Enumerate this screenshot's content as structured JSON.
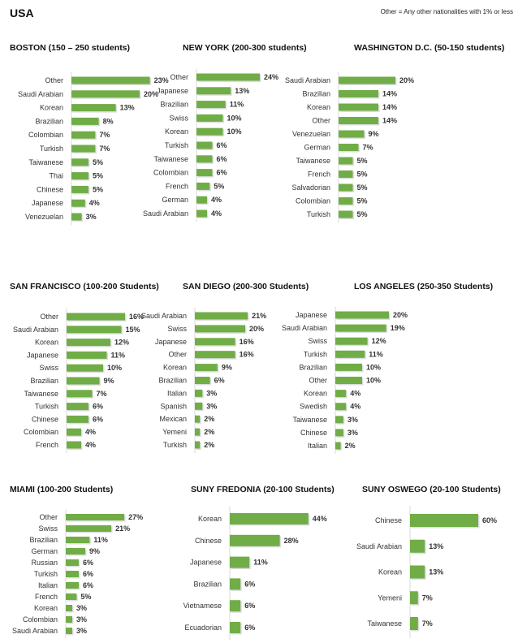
{
  "page_title": "USA",
  "note": "Other = Any other nationalities with 1% or less",
  "bar_color": "#70ad47",
  "chart_data": [
    {
      "type": "bar",
      "title": "BOSTON (150 – 250 students)",
      "categories": [
        "Other",
        "Saudi Arabian",
        "Korean",
        "Brazilian",
        "Colombian",
        "Turkish",
        "Taiwanese",
        "Thai",
        "Chinese",
        "Japanese",
        "Venezuelan"
      ],
      "values": [
        23,
        20,
        13,
        8,
        7,
        7,
        5,
        5,
        5,
        4,
        3
      ],
      "unit": "%"
    },
    {
      "type": "bar",
      "title": "NEW YORK (200-300 students)",
      "categories": [
        "Other",
        "Japanese",
        "Brazilian",
        "Swiss",
        "Korean",
        "Turkish",
        "Taiwanese",
        "Colombian",
        "French",
        "German",
        "Saudi Arabian"
      ],
      "values": [
        24,
        13,
        11,
        10,
        10,
        6,
        6,
        6,
        5,
        4,
        4
      ],
      "unit": "%"
    },
    {
      "type": "bar",
      "title": "WASHINGTON D.C. (50-150 students)",
      "categories": [
        "Saudi Arabian",
        "Brazilian",
        "Korean",
        "Other",
        "Venezuelan",
        "German",
        "Taiwanese",
        "French",
        "Salvadorian",
        "Colombian",
        "Turkish"
      ],
      "values": [
        20,
        14,
        14,
        14,
        9,
        7,
        5,
        5,
        5,
        5,
        5
      ],
      "unit": "%"
    },
    {
      "type": "bar",
      "title": "SAN FRANCISCO (100-200 Students)",
      "categories": [
        "Other",
        "Saudi Arabian",
        "Korean",
        "Japanese",
        "Swiss",
        "Brazilian",
        "Taiwanese",
        "Turkish",
        "Chinese",
        "Colombian",
        "French"
      ],
      "values": [
        16,
        15,
        12,
        11,
        10,
        9,
        7,
        6,
        6,
        4,
        4
      ],
      "unit": "%"
    },
    {
      "type": "bar",
      "title": "SAN DIEGO (200-300 Students)",
      "categories": [
        "Saudi Arabian",
        "Swiss",
        "Japanese",
        "Other",
        "Korean",
        "Brazilian",
        "Italian",
        "Spanish",
        "Mexican",
        "Yemeni",
        "Turkish"
      ],
      "values": [
        21,
        20,
        16,
        16,
        9,
        6,
        3,
        3,
        2,
        2,
        2
      ],
      "unit": "%"
    },
    {
      "type": "bar",
      "title": "LOS ANGELES (250-350 Students)",
      "categories": [
        "Japanese",
        "Saudi Arabian",
        "Swiss",
        "Turkish",
        "Brazilian",
        "Other",
        "Korean",
        "Swedish",
        "Taiwanese",
        "Chinese",
        "Italian"
      ],
      "values": [
        20,
        19,
        12,
        11,
        10,
        10,
        4,
        4,
        3,
        3,
        2
      ],
      "unit": "%"
    },
    {
      "type": "bar",
      "title": "MIAMI (100-200 Students)",
      "categories": [
        "Other",
        "Swiss",
        "Brazilian",
        "German",
        "Russian",
        "Turkish",
        "Italian",
        "French",
        "Korean",
        "Colombian",
        "Saudi Arabian"
      ],
      "values": [
        27,
        21,
        11,
        9,
        6,
        6,
        6,
        5,
        3,
        3,
        3
      ],
      "unit": "%"
    },
    {
      "type": "bar",
      "title": "SUNY FREDONIA (20-100 Students)",
      "categories": [
        "Korean",
        "Chinese",
        "Japanese",
        "Brazilian",
        "Vietnamese",
        "Ecuadorian"
      ],
      "values": [
        44,
        28,
        11,
        6,
        6,
        6
      ],
      "unit": "%"
    },
    {
      "type": "bar",
      "title": "SUNY OSWEGO (20-100 Students)",
      "categories": [
        "Chinese",
        "Saudi Arabian",
        "Korean",
        "Yemeni",
        "Taiwanese"
      ],
      "values": [
        60,
        13,
        13,
        7,
        7
      ],
      "unit": "%"
    }
  ]
}
